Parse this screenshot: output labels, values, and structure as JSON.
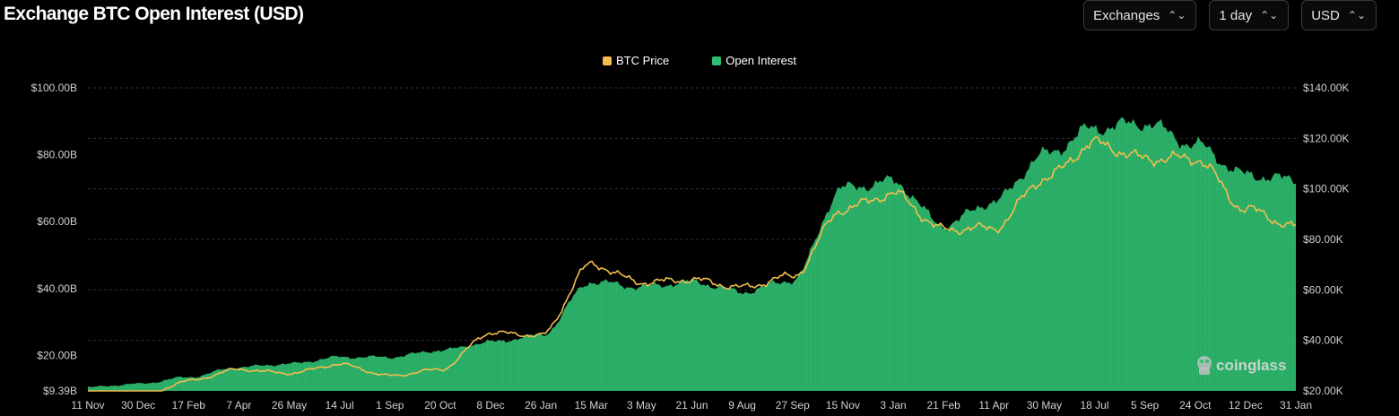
{
  "header": {
    "title": "Exchange BTC Open Interest (USD)",
    "selects": [
      {
        "label": "Exchanges"
      },
      {
        "label": "1 day"
      },
      {
        "label": "USD"
      }
    ]
  },
  "watermark": "coinglass",
  "colors": {
    "price": "#f2bd4e",
    "oi": "#2ebd70",
    "grid": "#333333",
    "background": "#000000"
  },
  "chart_data": {
    "type": "area",
    "title": "Exchange BTC Open Interest (USD)",
    "legend": {
      "position": "top-center",
      "entries": [
        "BTC Price",
        "Open Interest"
      ]
    },
    "grid": true,
    "x_ticks": [
      "11 Nov",
      "30 Dec",
      "17 Feb",
      "7 Apr",
      "26 May",
      "14 Jul",
      "1 Sep",
      "20 Oct",
      "8 Dec",
      "26 Jan",
      "15 Mar",
      "3 May",
      "21 Jun",
      "9 Aug",
      "27 Sep",
      "15 Nov",
      "3 Jan",
      "21 Feb",
      "11 Apr",
      "30 May",
      "18 Jul",
      "5 Sep",
      "24 Oct",
      "12 Dec",
      "31 Jan"
    ],
    "y_left": {
      "ticks": [
        "$9.39B",
        "$20.00B",
        "$40.00B",
        "$60.00B",
        "$80.00B",
        "$100.00B"
      ],
      "min": 9.39,
      "max": 100
    },
    "y_right": {
      "ticks": [
        "$20.00K",
        "$40.00K",
        "$60.00K",
        "$80.00K",
        "$100.00K",
        "$120.00K",
        "$140.00K"
      ],
      "min": 20,
      "max": 140
    },
    "x": [
      "11 Nov",
      "30 Dec",
      "17 Feb",
      "7 Apr",
      "26 May",
      "14 Jul",
      "1 Sep",
      "20 Oct",
      "8 Dec",
      "26 Jan",
      "15 Mar",
      "3 May",
      "21 Jun",
      "9 Aug",
      "27 Sep",
      "15 Nov",
      "3 Jan",
      "21 Feb",
      "11 Apr",
      "30 May",
      "18 Jul",
      "5 Sep",
      "24 Oct",
      "12 Dec",
      "31 Jan"
    ],
    "series": [
      {
        "name": "Open Interest",
        "axis": "left",
        "type": "bar-area",
        "unit": "B USD",
        "values": [
          10.5,
          11.5,
          13.5,
          16.5,
          17.5,
          19.5,
          19.5,
          21.5,
          24.0,
          26.0,
          42.0,
          40.5,
          42.0,
          39.0,
          42.5,
          70.0,
          72.0,
          59.0,
          66.0,
          80.0,
          88.0,
          89.5,
          83.0,
          74.0,
          72.5
        ]
      },
      {
        "name": "BTC Price",
        "axis": "right",
        "type": "line",
        "unit": "K USD",
        "values": [
          17.0,
          16.8,
          24.0,
          28.5,
          27.0,
          30.5,
          26.0,
          28.5,
          43.0,
          42.0,
          70.0,
          63.0,
          64.0,
          61.0,
          65.5,
          92.0,
          98.0,
          84.0,
          84.5,
          104.0,
          118.0,
          112.0,
          112.0,
          92.0,
          85.0
        ]
      }
    ]
  }
}
